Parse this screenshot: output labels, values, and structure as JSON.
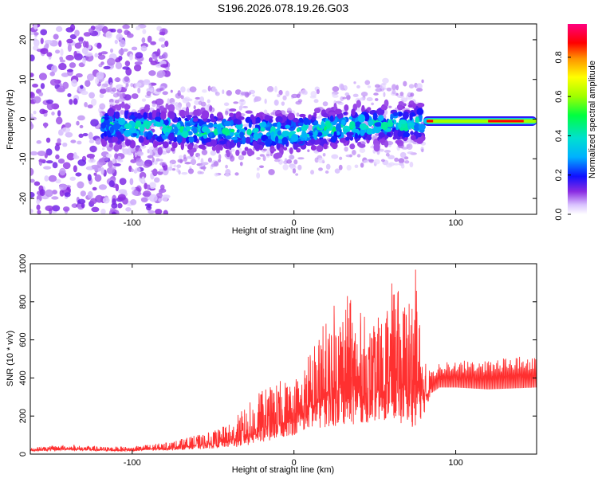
{
  "figure_title": "S196.2026.078.19.26.G03",
  "chart_data": [
    {
      "type": "heatmap",
      "xlabel": "Height of straight line (km)",
      "ylabel": "Frequency (Hz)",
      "xlim": [
        -163,
        150
      ],
      "ylim": [
        -24,
        24
      ],
      "xticks": [
        -100,
        0,
        100
      ],
      "yticks": [
        -20,
        -10,
        0,
        10,
        20
      ],
      "colorbar": {
        "label": "Normalized spectral amplitude",
        "range": [
          0,
          0.97
        ],
        "ticks": [
          0.0,
          0.2,
          0.4,
          0.6,
          0.8
        ]
      },
      "description_ridge": {
        "center_frequency_hz": [
          [
            -118,
            -1.5
          ],
          [
            -60,
            -3.0
          ],
          [
            0,
            -3.5
          ],
          [
            40,
            -1.5
          ],
          [
            80,
            -1.0
          ],
          [
            150,
            0.0
          ]
        ],
        "tone_segment_km": [
          80,
          150
        ],
        "tone_amplitude": 0.9
      }
    },
    {
      "type": "line",
      "xlabel": "Height of straight line (km)",
      "ylabel": "SNR (10 * v/v)",
      "xlim": [
        -163,
        150
      ],
      "ylim": [
        0,
        1000
      ],
      "xticks": [
        -100,
        0,
        100
      ],
      "yticks": [
        0,
        200,
        400,
        600,
        800,
        1000
      ],
      "series": [
        {
          "name": "SNR",
          "color": "#ff3030",
          "envelope": {
            "x": [
              -163,
              -140,
              -120,
              -100,
              -80,
              -65,
              -50,
              -40,
              -30,
              -20,
              -10,
              0,
              5,
              10,
              20,
              30,
              40,
              50,
              60,
              70,
              75,
              80,
              85,
              90,
              100,
              120,
              150
            ],
            "low": [
              15,
              20,
              15,
              15,
              20,
              25,
              30,
              35,
              40,
              60,
              80,
              100,
              120,
              130,
              140,
              150,
              160,
              170,
              180,
              150,
              140,
              200,
              320,
              350,
              350,
              340,
              350
            ],
            "high": [
              35,
              50,
              40,
              40,
              60,
              90,
              120,
              160,
              250,
              340,
              380,
              420,
              460,
              560,
              720,
              880,
              760,
              680,
              900,
              840,
              1000,
              500,
              450,
              480,
              490,
              500,
              520
            ]
          }
        }
      ]
    }
  ]
}
